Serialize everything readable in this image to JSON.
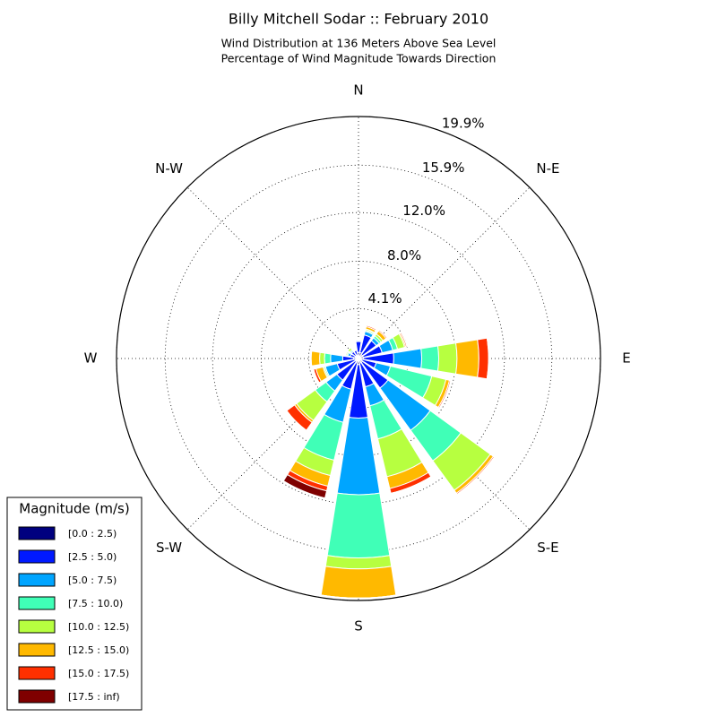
{
  "chart_data": {
    "type": "windrose",
    "title": "Billy Mitchell Sodar :: February 2010",
    "subtitle": [
      "Wind Distribution at 136 Meters Above Sea Level",
      "Percentage of Wind Magnitude Towards Direction"
    ],
    "categories": [
      "N",
      null,
      "N-E",
      null,
      "E",
      null,
      "S-E",
      null,
      "S",
      null,
      "S-W",
      null,
      "W",
      null,
      "N-W",
      null
    ],
    "rlim": [
      0,
      19.9
    ],
    "rticks": [
      {
        "value": 4.1,
        "label": "4.1%"
      },
      {
        "value": 8.0,
        "label": "8.0%"
      },
      {
        "value": 12.0,
        "label": "12.0%"
      },
      {
        "value": 15.9,
        "label": "15.9%"
      },
      {
        "value": 19.9,
        "label": "19.9%"
      }
    ],
    "grid": true,
    "legend_title": "Magnitude (m/s)",
    "legend_position": "lower left",
    "series": [
      {
        "name": "[0.0 : 2.5)",
        "color": "#00007f",
        "values": [
          0.5,
          0.5,
          0.4,
          0.4,
          0.4,
          0.3,
          0.4,
          0.4,
          0.5,
          0.4,
          0.3,
          0.3,
          0.4,
          0.3,
          0.3,
          0.3
        ]
      },
      {
        "name": "[2.5 : 5.0)",
        "color": "#0019ff",
        "values": [
          0.9,
          1.5,
          1.4,
          1.6,
          2.5,
          1.2,
          2.6,
          2.0,
          4.4,
          2.2,
          1.9,
          1.5,
          0.9,
          0.4,
          0.4,
          0.4
        ]
      },
      {
        "name": "[5.0 : 7.5)",
        "color": "#00a5ff",
        "values": [
          0.1,
          0.3,
          0.3,
          0.9,
          2.3,
          1.2,
          4.3,
          1.6,
          6.3,
          2.8,
          1.1,
          1.0,
          1.0,
          0.2,
          0.1,
          0
        ]
      },
      {
        "name": "[7.5 : 10.0)",
        "color": "#40ffb7",
        "values": [
          0,
          0.1,
          0.2,
          0.4,
          1.4,
          3.5,
          3.1,
          2.8,
          5.2,
          3.2,
          1.1,
          0.1,
          0.5,
          0.1,
          0.1,
          0
        ]
      },
      {
        "name": "[10.0 : 12.5)",
        "color": "#b7ff40",
        "values": [
          0,
          0.1,
          0.2,
          0.6,
          1.5,
          1.2,
          3.0,
          3.2,
          0.9,
          1.3,
          1.9,
          0.1,
          0.4,
          0.1,
          0.2,
          0
        ]
      },
      {
        "name": "[12.5 : 15.0)",
        "color": "#ffb900",
        "values": [
          0,
          0.2,
          0.3,
          0.1,
          1.8,
          0.3,
          0.3,
          1.0,
          2.4,
          0.9,
          0.2,
          0.6,
          0.7,
          0,
          0,
          0
        ]
      },
      {
        "name": "[15.0 : 17.5)",
        "color": "#ff3000",
        "values": [
          0,
          0.1,
          0.1,
          0.1,
          0.8,
          0.1,
          0.1,
          0.4,
          0,
          0.4,
          0.8,
          0.2,
          0,
          0,
          0,
          0
        ]
      },
      {
        "name": "[17.5 : inf)",
        "color": "#7f0000",
        "values": [
          0,
          0,
          0,
          0,
          0,
          0,
          0,
          0,
          0,
          0.6,
          0,
          0,
          0,
          0,
          0,
          0
        ]
      }
    ]
  }
}
